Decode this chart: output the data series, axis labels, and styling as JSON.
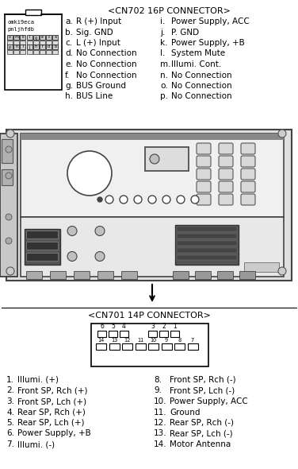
{
  "bg_color": "#ffffff",
  "cn702_title": "<CN702 16P CONNECTOR>",
  "cn702_left": [
    [
      "a.",
      "R (+) Input"
    ],
    [
      "b.",
      "Sig. GND"
    ],
    [
      "c.",
      "L (+) Input"
    ],
    [
      "d.",
      "No Connection"
    ],
    [
      "e.",
      "No Connection"
    ],
    [
      "f.",
      "No Connection"
    ],
    [
      "g.",
      "BUS Ground"
    ],
    [
      "h.",
      "BUS Line"
    ]
  ],
  "cn702_right": [
    [
      "i.",
      "Power Supply, ACC"
    ],
    [
      "j.",
      "P. GND"
    ],
    [
      "k.",
      "Power Supply, +B"
    ],
    [
      "l.",
      "System Mute"
    ],
    [
      "m.",
      "Illumi. Cont."
    ],
    [
      "n.",
      "No Connection"
    ],
    [
      "o.",
      "No Connection"
    ],
    [
      "p.",
      "No Connection"
    ]
  ],
  "cn701_title": "<CN701 14P CONNECTOR>",
  "cn701_left": [
    [
      "1.",
      "Illumi. (+)"
    ],
    [
      "2.",
      "Front SP, Rch (+)"
    ],
    [
      "3.",
      "Front SP, Lch (+)"
    ],
    [
      "4.",
      "Rear SP, Rch (+)"
    ],
    [
      "5.",
      "Rear SP, Lch (+)"
    ],
    [
      "6.",
      "Power Supply, +B"
    ],
    [
      "7.",
      "Illumi. (-)"
    ]
  ],
  "cn701_right": [
    [
      "8.",
      "Front SP, Rch (-)"
    ],
    [
      "9.",
      "Front SP, Lch (-)"
    ],
    [
      "10.",
      "Power Supply, ACC"
    ],
    [
      "11.",
      "Ground"
    ],
    [
      "12.",
      "Rear SP, Rch (-)"
    ],
    [
      "13.",
      "Rear SP, Lch (-)"
    ],
    [
      "14.",
      "Motor Antenna"
    ]
  ],
  "cn702_row1": [
    "o",
    "m",
    "k",
    "i",
    "g",
    "e",
    "c",
    "a"
  ],
  "cn702_row2": [
    "p",
    "n",
    "l",
    "j",
    "h",
    "f",
    "d",
    "b"
  ],
  "cn701_top_left": [
    "6",
    "5",
    "4"
  ],
  "cn701_top_right": [
    "3",
    "2",
    "1"
  ],
  "cn701_bot": [
    "14",
    "13",
    "12",
    "11",
    "10",
    "9",
    "8",
    "7"
  ]
}
